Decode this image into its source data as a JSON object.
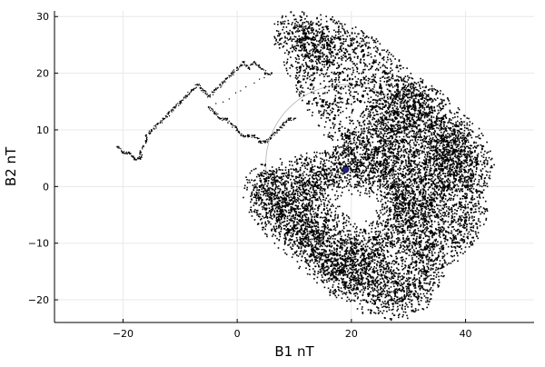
{
  "chart_data": {
    "type": "scatter",
    "xlabel": "B1 nT",
    "ylabel": "B2 nT",
    "xlim": [
      -32,
      52
    ],
    "ylim": [
      -24,
      31
    ],
    "xticks": [
      -20,
      0,
      20,
      40
    ],
    "yticks": [
      -20,
      -10,
      0,
      10,
      20,
      30
    ],
    "xtick_labels": [
      "−20",
      "0",
      "20",
      "40"
    ],
    "ytick_labels": [
      "−20",
      "−10",
      "0",
      "10",
      "20",
      "30"
    ],
    "grid": true,
    "legend": "none",
    "colors": {
      "trace": "#000000",
      "marker": "#1f1f8f",
      "circle": "#b0b0b0",
      "grid": "#e8e8e8"
    },
    "series": [
      {
        "style": "dotted-trail",
        "points": [
          [
            -21,
            7
          ],
          [
            -20,
            6
          ],
          [
            -19,
            6
          ],
          [
            -18,
            5
          ],
          [
            -17,
            5
          ],
          [
            -17,
            6
          ],
          [
            -16,
            8
          ],
          [
            -16,
            9
          ],
          [
            -15,
            10
          ],
          [
            -14,
            11
          ],
          [
            -13,
            12
          ],
          [
            -12,
            13
          ],
          [
            -11,
            14
          ],
          [
            -10,
            15
          ],
          [
            -9,
            16
          ],
          [
            -8,
            17
          ],
          [
            -7,
            18
          ],
          [
            -6,
            17
          ],
          [
            -5,
            16
          ],
          [
            -4,
            17
          ],
          [
            -3,
            18
          ],
          [
            -2,
            19
          ],
          [
            -1,
            20
          ],
          [
            0,
            21
          ],
          [
            1,
            22
          ],
          [
            2,
            21
          ],
          [
            3,
            22
          ],
          [
            4,
            21
          ],
          [
            5,
            20
          ],
          [
            6,
            20
          ],
          [
            -5,
            14
          ],
          [
            -4,
            13
          ],
          [
            -3,
            12
          ],
          [
            -2,
            12
          ],
          [
            -1,
            11
          ],
          [
            0,
            10
          ],
          [
            1,
            9
          ],
          [
            2,
            9
          ],
          [
            3,
            9
          ],
          [
            4,
            8
          ],
          [
            5,
            8
          ],
          [
            6,
            9
          ],
          [
            7,
            10
          ],
          [
            8,
            11
          ],
          [
            9,
            12
          ],
          [
            10,
            12
          ]
        ]
      },
      {
        "style": "dense-cloud",
        "points": [
          [
            9,
            27
          ],
          [
            10,
            28
          ],
          [
            11,
            26
          ],
          [
            12,
            27
          ],
          [
            13,
            26
          ],
          [
            15,
            27
          ],
          [
            16,
            25
          ],
          [
            18,
            26
          ],
          [
            20,
            25
          ],
          [
            22,
            24
          ],
          [
            24,
            22
          ],
          [
            26,
            20
          ],
          [
            28,
            18
          ],
          [
            30,
            17
          ],
          [
            31,
            15
          ],
          [
            32,
            13
          ],
          [
            34,
            11
          ],
          [
            36,
            9
          ],
          [
            38,
            8
          ],
          [
            40,
            8
          ],
          [
            41,
            6
          ],
          [
            42,
            4
          ],
          [
            41,
            2
          ],
          [
            40,
            0
          ],
          [
            40,
            -2
          ],
          [
            41,
            -4
          ],
          [
            40,
            -6
          ],
          [
            39,
            -8
          ],
          [
            38,
            -9
          ],
          [
            36,
            -11
          ],
          [
            34,
            -13
          ],
          [
            33,
            -15
          ],
          [
            32,
            -17
          ],
          [
            31,
            -19
          ],
          [
            29,
            -20
          ],
          [
            27,
            -20
          ],
          [
            25,
            -19
          ],
          [
            23,
            -19
          ],
          [
            21,
            -18
          ],
          [
            19,
            -17
          ],
          [
            17,
            -16
          ],
          [
            15,
            -14
          ],
          [
            13,
            -12
          ],
          [
            11,
            -10
          ],
          [
            9,
            -8
          ],
          [
            7,
            -6
          ],
          [
            5,
            -4
          ],
          [
            4,
            -2
          ],
          [
            4,
            0
          ],
          [
            5,
            1
          ],
          [
            7,
            1
          ],
          [
            9,
            2
          ],
          [
            11,
            2
          ],
          [
            13,
            3
          ],
          [
            15,
            3
          ],
          [
            17,
            3
          ],
          [
            19,
            3
          ],
          [
            21,
            2
          ],
          [
            23,
            2
          ],
          [
            25,
            1
          ],
          [
            27,
            0
          ],
          [
            28,
            -2
          ],
          [
            29,
            -4
          ],
          [
            30,
            -6
          ],
          [
            29,
            -8
          ],
          [
            27,
            -10
          ],
          [
            25,
            -12
          ],
          [
            23,
            -14
          ],
          [
            21,
            -15
          ],
          [
            19,
            -14
          ],
          [
            17,
            -12
          ],
          [
            15,
            -10
          ],
          [
            13,
            -8
          ],
          [
            11,
            -6
          ],
          [
            10,
            -4
          ],
          [
            12,
            -2
          ],
          [
            14,
            0
          ],
          [
            16,
            1
          ],
          [
            18,
            4
          ],
          [
            20,
            6
          ],
          [
            22,
            8
          ],
          [
            24,
            10
          ],
          [
            26,
            12
          ],
          [
            28,
            13
          ],
          [
            30,
            12
          ],
          [
            32,
            10
          ],
          [
            34,
            8
          ],
          [
            35,
            6
          ],
          [
            33,
            4
          ],
          [
            31,
            6
          ],
          [
            29,
            8
          ],
          [
            27,
            6
          ],
          [
            25,
            4
          ],
          [
            23,
            5
          ],
          [
            21,
            7
          ],
          [
            19,
            9
          ],
          [
            17,
            12
          ],
          [
            15,
            15
          ],
          [
            13,
            18
          ],
          [
            11,
            21
          ],
          [
            12,
            23
          ],
          [
            14,
            24
          ],
          [
            16,
            22
          ],
          [
            18,
            20
          ],
          [
            20,
            18
          ],
          [
            22,
            16
          ],
          [
            24,
            14
          ],
          [
            26,
            15
          ],
          [
            28,
            16
          ],
          [
            30,
            14
          ],
          [
            32,
            16
          ],
          [
            34,
            14
          ],
          [
            36,
            12
          ],
          [
            38,
            10
          ],
          [
            37,
            6
          ],
          [
            36,
            3
          ],
          [
            35,
            0
          ],
          [
            34,
            -3
          ],
          [
            33,
            -6
          ],
          [
            32,
            -9
          ],
          [
            31,
            -12
          ],
          [
            30,
            -15
          ],
          [
            28,
            -17
          ],
          [
            26,
            -16
          ],
          [
            24,
            -15
          ],
          [
            22,
            -12
          ],
          [
            20,
            -10
          ],
          [
            18,
            -8
          ],
          [
            16,
            -6
          ],
          [
            14,
            -5
          ],
          [
            12,
            -4
          ],
          [
            10,
            -2
          ],
          [
            8,
            -1
          ],
          [
            6,
            -3
          ],
          [
            8,
            -5
          ],
          [
            10,
            -7
          ],
          [
            12,
            -9
          ],
          [
            14,
            -11
          ],
          [
            16,
            -13
          ],
          [
            18,
            -15
          ],
          [
            20,
            -13
          ],
          [
            22,
            -11
          ],
          [
            24,
            -9
          ],
          [
            26,
            -7
          ],
          [
            28,
            -5
          ],
          [
            30,
            -3
          ],
          [
            32,
            -1
          ],
          [
            34,
            2
          ],
          [
            36,
            5
          ],
          [
            38,
            6
          ],
          [
            39,
            4
          ],
          [
            38,
            2
          ],
          [
            37,
            0
          ],
          [
            36,
            -2
          ],
          [
            35,
            -5
          ],
          [
            34,
            -8
          ],
          [
            33,
            -11
          ],
          [
            27,
            3
          ],
          [
            28,
            5
          ],
          [
            29,
            2
          ],
          [
            30,
            0
          ],
          [
            31,
            -2
          ],
          [
            28,
            8
          ],
          [
            27,
            10
          ],
          [
            25,
            8
          ]
        ]
      }
    ],
    "marker_point": [
      19,
      3
    ],
    "circle": {
      "center": [
        19,
        4
      ],
      "radius": 14
    }
  }
}
